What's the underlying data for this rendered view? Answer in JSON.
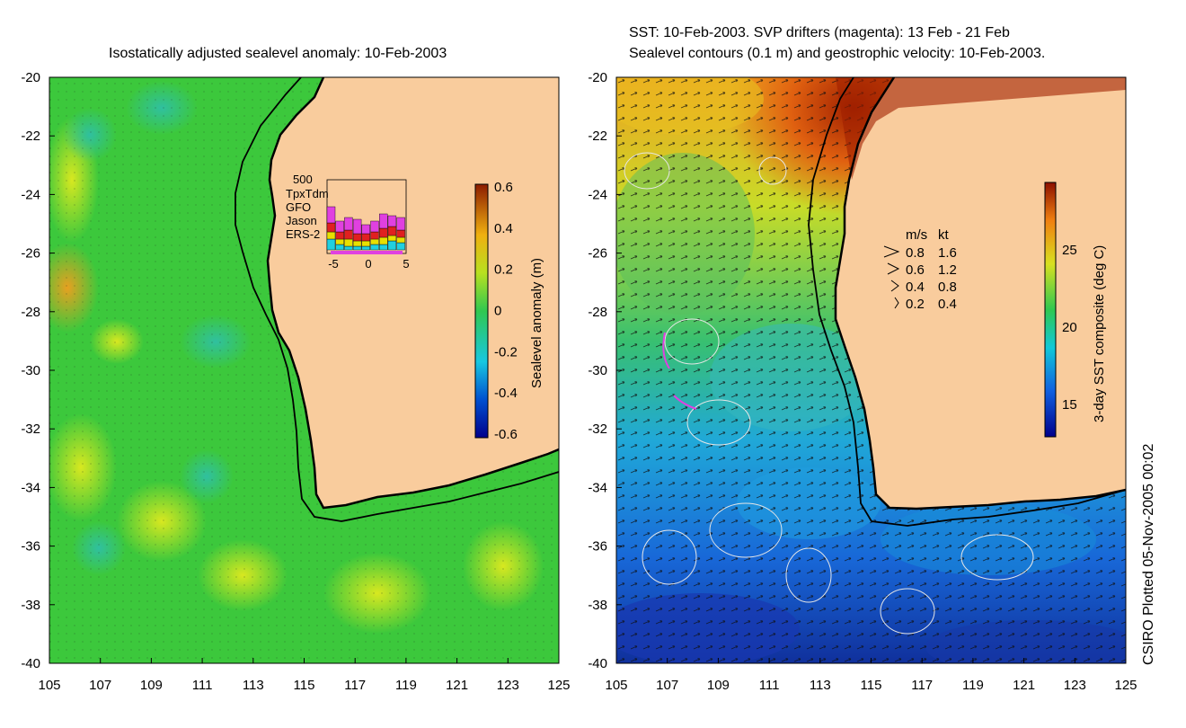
{
  "colors": {
    "land": "#F9CC9D",
    "ssh_background": "#3CC83C",
    "coast": "#000000",
    "white_contour": "#E6E6E6"
  },
  "left_panel": {
    "title": "Isostatically adjusted sealevel anomaly: 10-Feb-2003",
    "x_ticks": [
      "105",
      "107",
      "109",
      "111",
      "113",
      "115",
      "117",
      "119",
      "121",
      "123",
      "125"
    ],
    "y_ticks": [
      "-20",
      "-22",
      "-24",
      "-26",
      "-28",
      "-30",
      "-32",
      "-34",
      "-36",
      "-38",
      "-40"
    ],
    "colorbar": {
      "label": "Sealevel anomaly (m)",
      "ticks": [
        "0.6",
        "0.4",
        "0.2",
        "0",
        "-0.2",
        "-0.4",
        "-0.6"
      ]
    },
    "inset": {
      "ymax_label": "500",
      "legend": [
        {
          "name": "TpxTdm",
          "color": "#E040E0"
        },
        {
          "name": "GFO",
          "color": "#E02020"
        },
        {
          "name": "Jason",
          "color": "#E8E000"
        },
        {
          "name": "ERS-2",
          "color": "#20D0E0"
        }
      ],
      "x_ticks": [
        "-5",
        "0",
        "5"
      ]
    }
  },
  "right_panel": {
    "title_line1": "SST: 10-Feb-2003. SVP drifters (magenta): 13 Feb - 21 Feb",
    "title_line2": "Sealevel contours (0.1 m) and geostrophic velocity: 10-Feb-2003.",
    "x_ticks": [
      "105",
      "107",
      "109",
      "111",
      "113",
      "115",
      "117",
      "119",
      "121",
      "123",
      "125"
    ],
    "y_ticks": [
      "-20",
      "-22",
      "-24",
      "-26",
      "-28",
      "-30",
      "-32",
      "-34",
      "-36",
      "-38",
      "-40"
    ],
    "colorbar": {
      "label": "3-day SST composite (deg C)",
      "ticks": [
        "25",
        "20",
        "15"
      ]
    },
    "velocity_legend": {
      "header_ms": "m/s",
      "header_kt": "kt",
      "rows": [
        {
          "ms": "0.8",
          "kt": "1.6"
        },
        {
          "ms": "0.6",
          "kt": "1.2"
        },
        {
          "ms": "0.4",
          "kt": "0.8"
        },
        {
          "ms": "0.2",
          "kt": "0.4"
        }
      ]
    }
  },
  "stamp": "CSIRO Plotted 05-Nov-2005 00:02"
}
